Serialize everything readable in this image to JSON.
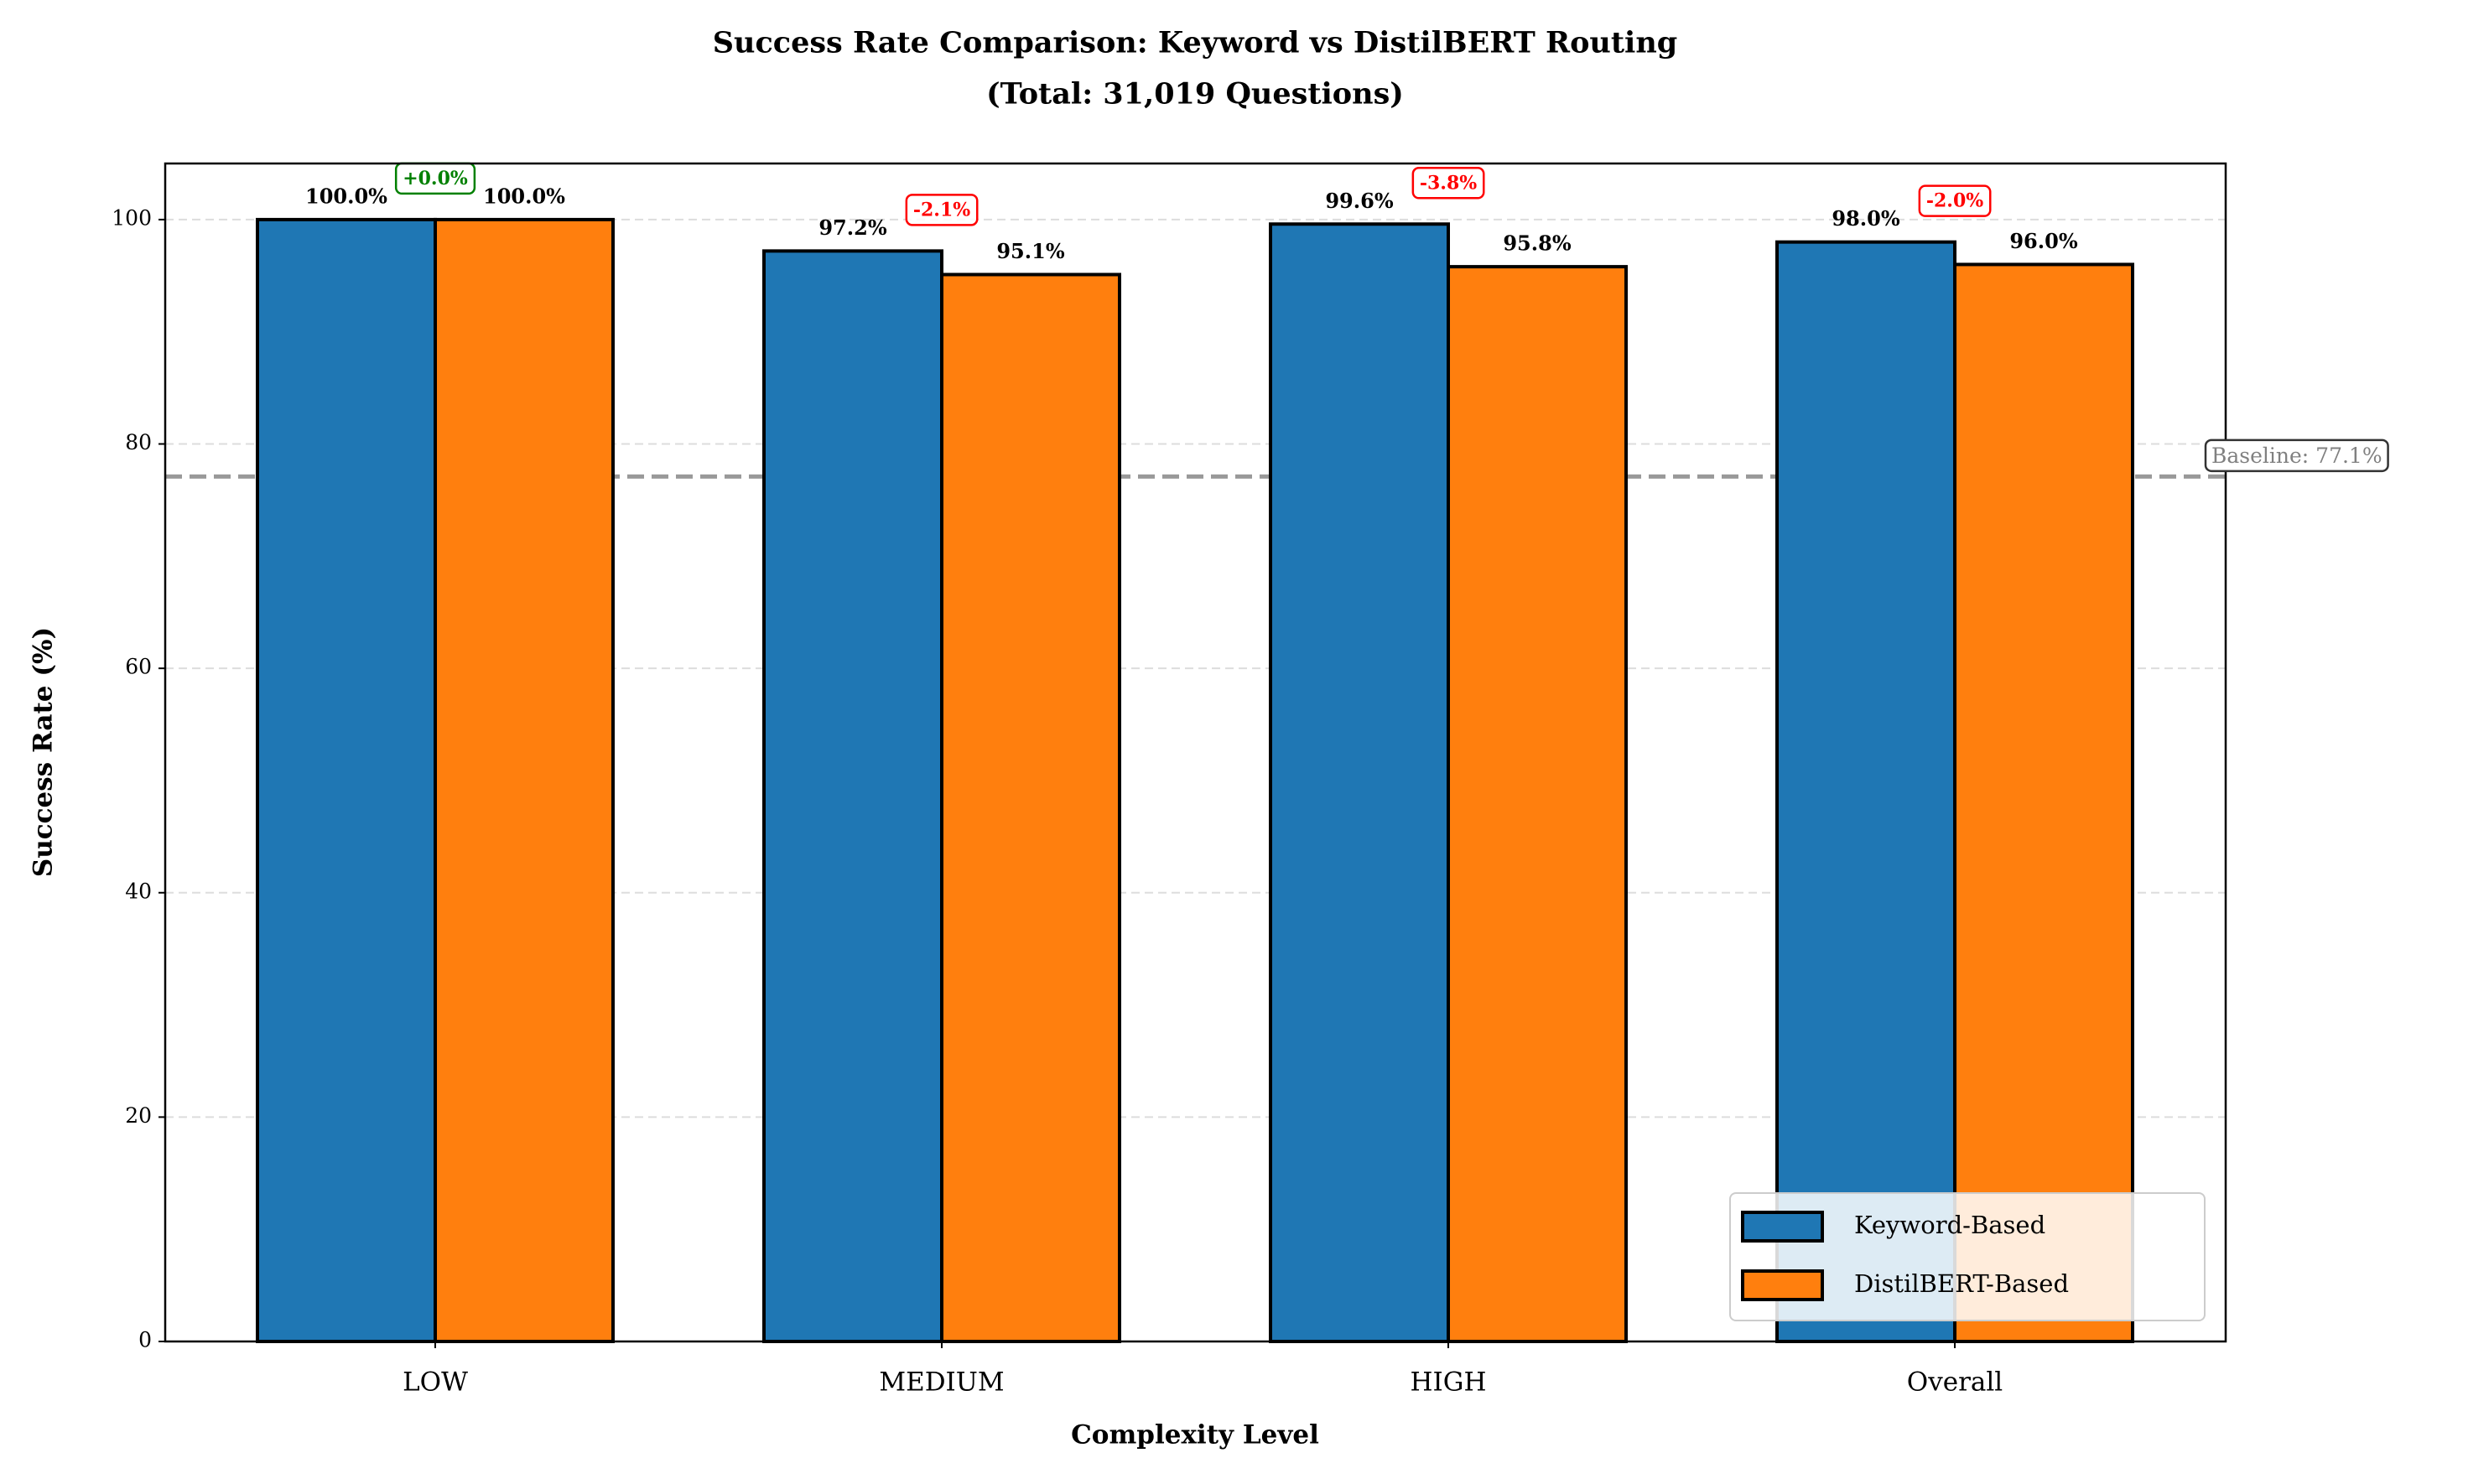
{
  "chart_data": {
    "type": "bar",
    "title": "Success Rate Comparison: Keyword vs DistilBERT Routing",
    "subtitle": "(Total: 31,019 Questions)",
    "x_label": "Complexity Level",
    "y_label": "Success Rate (%)",
    "categories": [
      "LOW",
      "MEDIUM",
      "HIGH",
      "Overall"
    ],
    "series": [
      {
        "name": "Keyword-Based",
        "color": "#1f77b4",
        "values": [
          100.0,
          97.2,
          99.6,
          98.0
        ],
        "value_labels": [
          "100.0%",
          "97.2%",
          "99.6%",
          "98.0%"
        ]
      },
      {
        "name": "DistilBERT-Based",
        "color": "#ff7f0e",
        "values": [
          100.0,
          95.1,
          95.8,
          96.0
        ],
        "value_labels": [
          "100.0%",
          "95.1%",
          "95.8%",
          "96.0%"
        ]
      }
    ],
    "differences": {
      "values": [
        0.0,
        -2.1,
        -3.8,
        -2.0
      ],
      "value_labels": [
        "+0.0%",
        "-2.1%",
        "-3.8%",
        "-2.0%"
      ],
      "colors": [
        "green",
        "red",
        "red",
        "red"
      ]
    },
    "baseline": {
      "value": 77.1,
      "label": "Baseline: 77.1%",
      "color": "#999999"
    },
    "ylim": [
      0,
      105
    ],
    "yticks": [
      0,
      20,
      40,
      60,
      80,
      100
    ],
    "grid": true,
    "legend": "lower right"
  }
}
